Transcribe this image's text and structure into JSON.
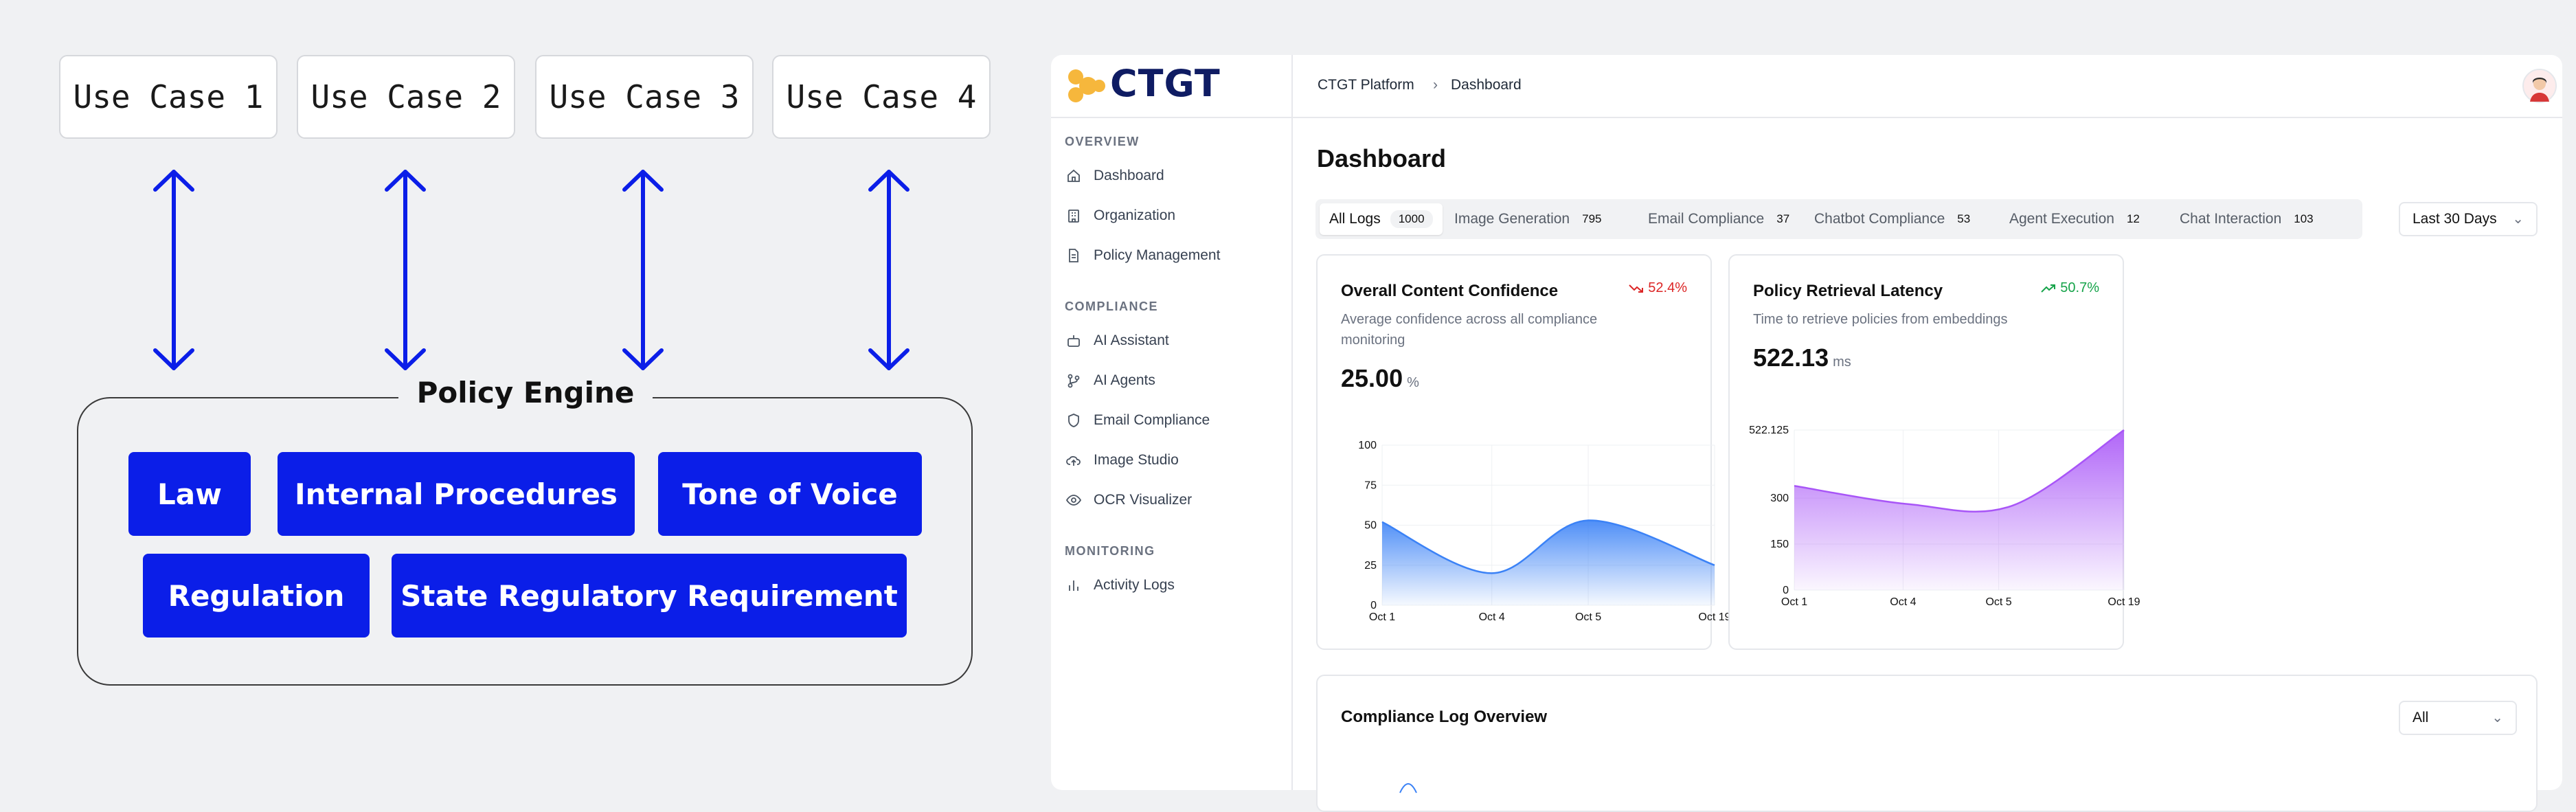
{
  "diagram": {
    "use_cases": [
      "Use Case 1",
      "Use Case 2",
      "Use Case 3",
      "Use Case 4"
    ],
    "engine_title": "Policy Engine",
    "policies_row1": [
      "Law",
      "Internal Procedures",
      "Tone of Voice"
    ],
    "policies_row2": [
      "Regulation",
      "State Regulatory Requirement"
    ],
    "accent": "#0b1ee8"
  },
  "app": {
    "logo": "CTGT",
    "breadcrumb": {
      "root": "CTGT Platform",
      "separator": "›",
      "current": "Dashboard"
    },
    "sidebar": {
      "overview_label": "OVERVIEW",
      "overview_items": [
        {
          "label": "Dashboard",
          "icon": "home-icon"
        },
        {
          "label": "Organization",
          "icon": "building-icon"
        },
        {
          "label": "Policy Management",
          "icon": "document-icon"
        }
      ],
      "compliance_label": "COMPLIANCE",
      "compliance_items": [
        {
          "label": "AI Assistant",
          "icon": "bot-icon"
        },
        {
          "label": "AI Agents",
          "icon": "branch-icon"
        },
        {
          "label": "Email Compliance",
          "icon": "shield-icon"
        },
        {
          "label": "Image Studio",
          "icon": "cloud-upload-icon"
        },
        {
          "label": "OCR Visualizer",
          "icon": "eye-icon"
        }
      ],
      "monitoring_label": "MONITORING",
      "monitoring_items": [
        {
          "label": "Activity Logs",
          "icon": "bar-chart-icon"
        }
      ]
    },
    "page_title": "Dashboard",
    "tabs": [
      {
        "label": "All Logs",
        "count": "1000",
        "active": true
      },
      {
        "label": "Image Generation",
        "count": "795"
      },
      {
        "label": "Email Compliance",
        "count": "37"
      },
      {
        "label": "Chatbot Compliance",
        "count": "53"
      },
      {
        "label": "Agent Execution",
        "count": "12"
      },
      {
        "label": "Chat Interaction",
        "count": "103"
      }
    ],
    "range_select": {
      "value": "Last 30 Days"
    },
    "cards": [
      {
        "title": "Overall Content Confidence",
        "subtitle": "Average confidence across all compliance monitoring",
        "delta": "52.4%",
        "delta_dir": "down",
        "delta_color": "#dc2626",
        "value": "25.00",
        "unit": "%"
      },
      {
        "title": "Policy Retrieval Latency",
        "subtitle": "Time to retrieve policies from embeddings",
        "delta": "50.7%",
        "delta_dir": "up",
        "delta_color": "#16a34a",
        "value": "522.13",
        "unit": "ms"
      }
    ],
    "overview": {
      "title": "Compliance Log Overview",
      "filter": "All"
    }
  },
  "chart_data": [
    {
      "type": "area",
      "title": "",
      "x": [
        "Oct 1",
        "Oct 4",
        "Oct 5",
        "Oct 19"
      ],
      "y_ticks": [
        "0",
        "25",
        "50",
        "75",
        "100"
      ],
      "ylim": [
        0,
        100
      ],
      "series": [
        {
          "points": [
            [
              0,
              52
            ],
            [
              0.33,
              20
            ],
            [
              0.62,
              53
            ],
            [
              1,
              25
            ]
          ]
        }
      ],
      "color": "#3b82f6",
      "grid": true
    },
    {
      "type": "area",
      "title": "",
      "x": [
        "Oct 1",
        "Oct 4",
        "Oct 5",
        "Oct 19"
      ],
      "y_ticks": [
        "0",
        "150",
        "300",
        "522.125"
      ],
      "ylim": [
        0,
        522.125
      ],
      "series": [
        {
          "points": [
            [
              0,
              340
            ],
            [
              0.35,
              280
            ],
            [
              0.66,
              275
            ],
            [
              1,
              522
            ]
          ]
        }
      ],
      "color": "#a855f7",
      "grid": true
    }
  ]
}
